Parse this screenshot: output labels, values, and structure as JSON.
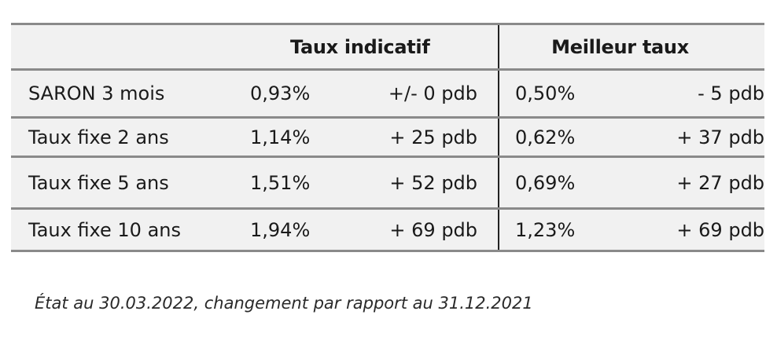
{
  "table": {
    "headers": {
      "label": "",
      "group1": "Taux indicatif",
      "group2": "Meilleur taux"
    },
    "rows": [
      {
        "label": "SARON 3 mois",
        "indicative_rate": "0,93%",
        "indicative_change": "+/- 0 pdb",
        "best_rate": "0,50%",
        "best_change": "- 5 pdb"
      },
      {
        "label": "Taux fixe 2 ans",
        "indicative_rate": "1,14%",
        "indicative_change": "+ 25 pdb",
        "best_rate": "0,62%",
        "best_change": "+ 37 pdb"
      },
      {
        "label": "Taux fixe 5 ans",
        "indicative_rate": "1,51%",
        "indicative_change": "+ 52 pdb",
        "best_rate": "0,69%",
        "best_change": "+ 27 pdb"
      },
      {
        "label": "Taux fixe 10 ans",
        "indicative_rate": "1,94%",
        "indicative_change": "+ 69 pdb",
        "best_rate": "1,23%",
        "best_change": "+ 69 pdb"
      }
    ]
  },
  "footnote": "État au 30.03.2022, changement par rapport au 31.12.2021",
  "colors": {
    "row_background": "#f1f1f1",
    "border": "#8a8a8a",
    "separator": "#222222",
    "text": "#1a1a1a"
  }
}
